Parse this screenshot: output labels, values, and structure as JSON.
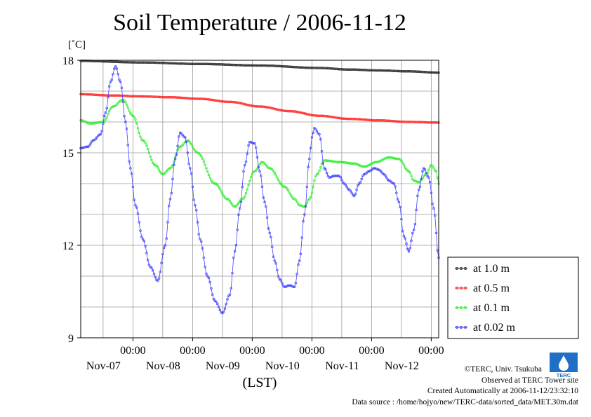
{
  "title": "Soil Temperature / 2006-11-12",
  "unit_label": "[˚C]",
  "credits": {
    "copyright": "©TERC, Univ. Tsukuba",
    "observed": "Observed at TERC Tower site",
    "created": "Created Automatically at 2006-11-12/23:32:10",
    "source": "Data source : /home/hojyo/new/TERC-data/sorted_data/MET.30m.dat"
  },
  "logo_text": "TERC",
  "colors": {
    "at_1_0m": "#333333",
    "at_0_5m": "#ff3030",
    "at_0_1m": "#33ee33",
    "at_0_02m": "#4444ff"
  },
  "chart_data": {
    "type": "line",
    "title": "Soil Temperature / 2006-11-12",
    "xlabel": "(LST)",
    "ylabel": "[˚C]",
    "xlim": [
      0,
      144
    ],
    "ylim": [
      9,
      18
    ],
    "y_ticks": [
      "9",
      "12",
      "15",
      "18"
    ],
    "x_ticks": [
      {
        "t": 21,
        "time": "00:00",
        "date": "Nov-07"
      },
      {
        "t": 45,
        "time": "00:00",
        "date": "Nov-08"
      },
      {
        "t": 69,
        "time": "00:00",
        "date": "Nov-09"
      },
      {
        "t": 93,
        "time": "00:00",
        "date": "Nov-10"
      },
      {
        "t": 117,
        "time": "00:00",
        "date": "Nov-11"
      },
      {
        "t": 141,
        "time": "00:00",
        "date": "Nov-12"
      }
    ],
    "grid": true,
    "legend_position": "right",
    "series": [
      {
        "name": "at 1.0 m",
        "color": "#333333",
        "points": [
          [
            0,
            17.98
          ],
          [
            24,
            17.93
          ],
          [
            48,
            17.88
          ],
          [
            72,
            17.83
          ],
          [
            96,
            17.75
          ],
          [
            108,
            17.7
          ],
          [
            120,
            17.67
          ],
          [
            132,
            17.64
          ],
          [
            144,
            17.6
          ]
        ]
      },
      {
        "name": "at 0.5 m",
        "color": "#ff3030",
        "points": [
          [
            0,
            16.9
          ],
          [
            12,
            16.86
          ],
          [
            24,
            16.83
          ],
          [
            36,
            16.8
          ],
          [
            48,
            16.75
          ],
          [
            60,
            16.65
          ],
          [
            72,
            16.5
          ],
          [
            84,
            16.35
          ],
          [
            96,
            16.2
          ],
          [
            108,
            16.1
          ],
          [
            120,
            16.05
          ],
          [
            132,
            16.0
          ],
          [
            144,
            15.98
          ]
        ]
      },
      {
        "name": "at 0.1 m",
        "color": "#33ee33",
        "points": [
          [
            0,
            16.05
          ],
          [
            4,
            15.95
          ],
          [
            9,
            16.0
          ],
          [
            13,
            16.5
          ],
          [
            17,
            16.72
          ],
          [
            21,
            16.2
          ],
          [
            25,
            15.4
          ],
          [
            30,
            14.6
          ],
          [
            33,
            14.3
          ],
          [
            36,
            14.5
          ],
          [
            40,
            15.2
          ],
          [
            43,
            15.4
          ],
          [
            47,
            15.0
          ],
          [
            54,
            14.0
          ],
          [
            59,
            13.5
          ],
          [
            62,
            13.25
          ],
          [
            65,
            13.5
          ],
          [
            70,
            14.4
          ],
          [
            73,
            14.7
          ],
          [
            76,
            14.5
          ],
          [
            82,
            13.9
          ],
          [
            86,
            13.5
          ],
          [
            88,
            13.3
          ],
          [
            90,
            13.25
          ],
          [
            92,
            13.5
          ],
          [
            95,
            14.3
          ],
          [
            98,
            14.75
          ],
          [
            104,
            14.7
          ],
          [
            110,
            14.65
          ],
          [
            114,
            14.55
          ],
          [
            119,
            14.7
          ],
          [
            124,
            14.85
          ],
          [
            128,
            14.8
          ],
          [
            132,
            14.4
          ],
          [
            134,
            14.1
          ],
          [
            136,
            14.05
          ],
          [
            139,
            14.3
          ],
          [
            141,
            14.6
          ],
          [
            143,
            14.4
          ],
          [
            144,
            14.0
          ]
        ]
      },
      {
        "name": "at 0.02 m",
        "color": "#4444ff",
        "points": [
          [
            0,
            15.15
          ],
          [
            3,
            15.2
          ],
          [
            5,
            15.4
          ],
          [
            8,
            15.6
          ],
          [
            10,
            16.3
          ],
          [
            12,
            17.3
          ],
          [
            14,
            17.8
          ],
          [
            16,
            17.3
          ],
          [
            18,
            16.0
          ],
          [
            20,
            14.5
          ],
          [
            22,
            13.3
          ],
          [
            25,
            12.2
          ],
          [
            28,
            11.3
          ],
          [
            31,
            10.85
          ],
          [
            34,
            12.0
          ],
          [
            36,
            13.5
          ],
          [
            38,
            14.8
          ],
          [
            40,
            15.65
          ],
          [
            42,
            15.5
          ],
          [
            44,
            14.5
          ],
          [
            46,
            13.3
          ],
          [
            48,
            12.2
          ],
          [
            51,
            11.0
          ],
          [
            54,
            10.2
          ],
          [
            57,
            9.8
          ],
          [
            60,
            10.4
          ],
          [
            62,
            11.8
          ],
          [
            64,
            13.2
          ],
          [
            66,
            14.6
          ],
          [
            68,
            15.35
          ],
          [
            70,
            15.3
          ],
          [
            72,
            14.4
          ],
          [
            74,
            13.4
          ],
          [
            76,
            12.4
          ],
          [
            78,
            11.5
          ],
          [
            80,
            10.9
          ],
          [
            82,
            10.65
          ],
          [
            84,
            10.7
          ],
          [
            86,
            10.65
          ],
          [
            88,
            11.5
          ],
          [
            90,
            13.0
          ],
          [
            92,
            14.8
          ],
          [
            93,
            15.5
          ],
          [
            94,
            15.8
          ],
          [
            96,
            15.6
          ],
          [
            98,
            14.5
          ],
          [
            100,
            14.2
          ],
          [
            102,
            14.25
          ],
          [
            104,
            14.25
          ],
          [
            106,
            14.0
          ],
          [
            108,
            13.8
          ],
          [
            110,
            13.6
          ],
          [
            112,
            14.0
          ],
          [
            114,
            14.3
          ],
          [
            116,
            14.4
          ],
          [
            118,
            14.5
          ],
          [
            120,
            14.45
          ],
          [
            122,
            14.3
          ],
          [
            124,
            14.1
          ],
          [
            126,
            14.0
          ],
          [
            128,
            13.4
          ],
          [
            130,
            12.3
          ],
          [
            132,
            11.8
          ],
          [
            134,
            12.5
          ],
          [
            136,
            13.8
          ],
          [
            138,
            14.5
          ],
          [
            140,
            14.2
          ],
          [
            142,
            13.2
          ],
          [
            144,
            11.6
          ]
        ]
      }
    ]
  }
}
